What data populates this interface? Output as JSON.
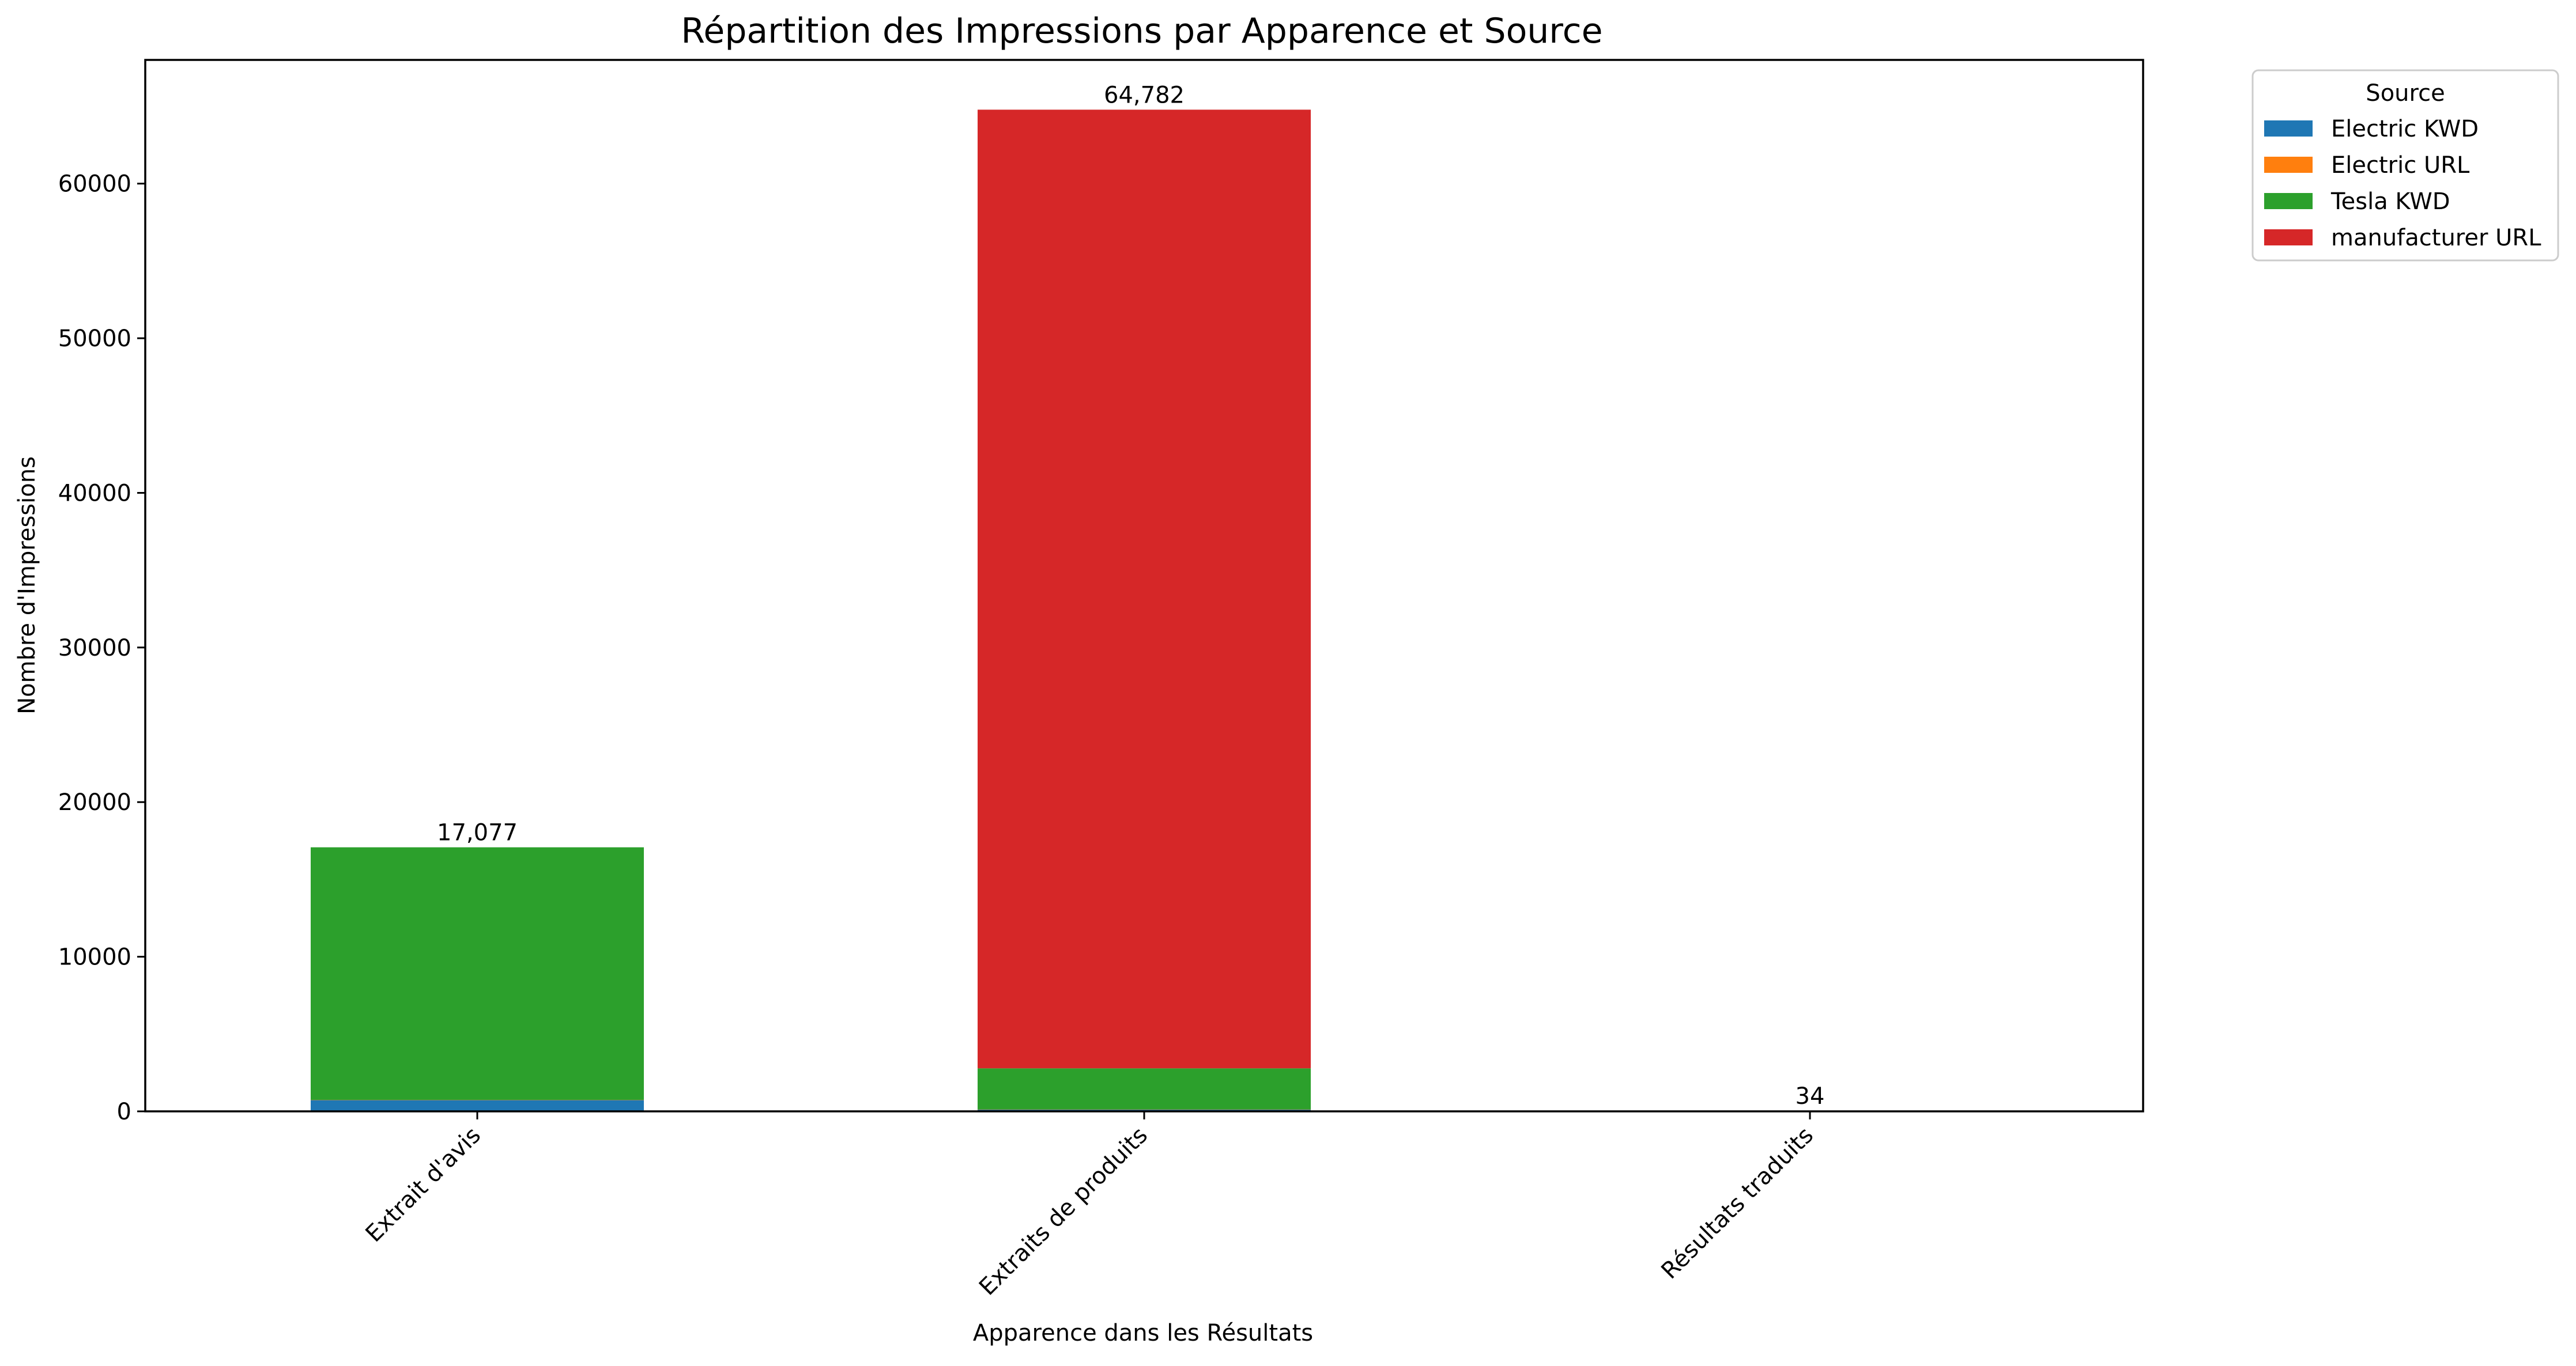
{
  "chart_data": {
    "type": "bar",
    "stacked": true,
    "title": "Répartition des Impressions par Apparence et Source",
    "xlabel": "Apparence dans les Résultats",
    "ylabel": "Nombre d'Impressions",
    "ylim": [
      0,
      68000
    ],
    "yticks": [
      "0",
      "10000",
      "20000",
      "30000",
      "40000",
      "50000",
      "60000"
    ],
    "categories": [
      "Extrait d'avis",
      "Extraits de produits",
      "Résultats traduits"
    ],
    "legend_title": "Source",
    "legend_position": "outside-top-right",
    "grid": false,
    "series": [
      {
        "name": "Electric KWD",
        "color": "#1f77b4",
        "values": [
          730,
          120,
          20
        ]
      },
      {
        "name": "Electric URL",
        "color": "#ff7f0e",
        "values": [
          10,
          5,
          14
        ]
      },
      {
        "name": "Tesla KWD",
        "color": "#2ca02c",
        "values": [
          16337,
          2657,
          0
        ]
      },
      {
        "name": "manufacturer URL",
        "color": "#d62728",
        "values": [
          0,
          62000,
          0
        ]
      }
    ],
    "totals": [
      "17,077",
      "64,782",
      "34"
    ]
  }
}
